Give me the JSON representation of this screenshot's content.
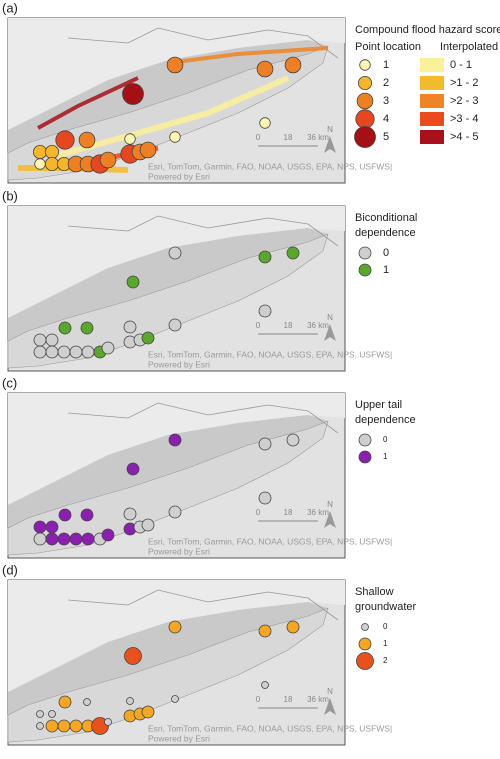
{
  "panels": [
    {
      "label": "(a)",
      "title_lines": [
        "Compound flood hazard score"
      ],
      "point_header": "Point location",
      "area_header": "Interpolated",
      "classes": [
        1,
        2,
        3,
        4,
        5
      ],
      "class_colors": [
        "#fdf6b0",
        "#f5b62a",
        "#ee7f22",
        "#e8461e",
        "#a50f15"
      ],
      "area_labels": [
        "0 - 1",
        ">1 - 2",
        ">2 - 3",
        ">3 - 4",
        ">4 - 5"
      ],
      "area_colors": [
        "#fbf19a",
        "#f2bb2c",
        "#ee8424",
        "#ea4a1c",
        "#a8101a"
      ],
      "values": [
        3,
        3,
        3,
        5,
        1,
        4,
        3,
        1,
        1,
        2,
        2,
        1,
        2,
        2,
        3,
        3,
        4,
        4,
        3,
        3,
        3
      ]
    },
    {
      "label": "(b)",
      "title_lines": [
        "Biconditional",
        "dependence"
      ],
      "classes": [
        0,
        1
      ],
      "class_colors": [
        "#cfcfcf",
        "#5aa82a"
      ],
      "values": [
        0,
        1,
        1,
        1,
        0,
        1,
        1,
        0,
        0,
        0,
        0,
        0,
        0,
        0,
        0,
        0,
        1,
        0,
        0,
        1,
        0
      ]
    },
    {
      "label": "(c)",
      "title_lines": [
        "Upper tail",
        "dependence"
      ],
      "classes": [
        0,
        1
      ],
      "class_colors": [
        "#cfcfcf",
        "#8a1fb0"
      ],
      "values": [
        1,
        0,
        0,
        1,
        0,
        1,
        1,
        0,
        0,
        1,
        1,
        0,
        1,
        1,
        1,
        1,
        0,
        1,
        0,
        0,
        1
      ]
    },
    {
      "label": "(d)",
      "title_lines": [
        "Shallow",
        "groundwater"
      ],
      "classes": [
        0,
        1,
        2
      ],
      "class_colors": [
        "#cfcfcf",
        "#f5a623",
        "#e8501c"
      ],
      "values": [
        1,
        1,
        1,
        2,
        0,
        1,
        0,
        0,
        0,
        0,
        0,
        0,
        1,
        1,
        1,
        1,
        2,
        1,
        1,
        1,
        0
      ]
    }
  ],
  "scale_labels": [
    "0",
    "18",
    "36 km"
  ],
  "north": "N",
  "attribution": "Esri, TomTom, Garmin, FAO, NOAA, USGS, EPA, NPS, USFWS|",
  "powered": "Powered by Esri"
}
